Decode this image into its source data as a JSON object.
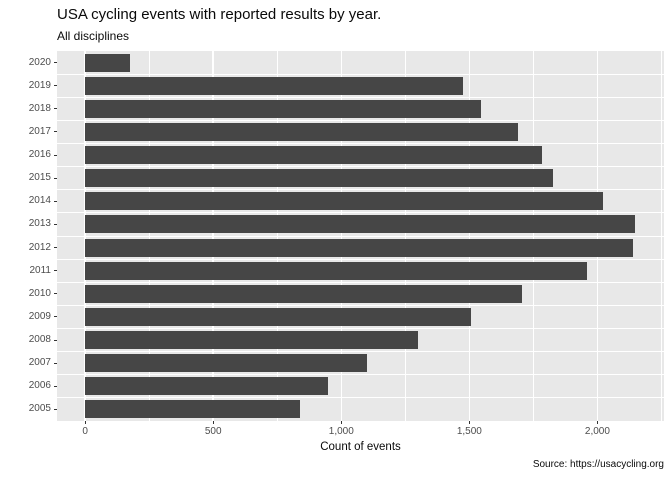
{
  "header": {
    "title": "USA cycling events with reported results by year.",
    "subtitle": "All disciplines"
  },
  "chart_data": {
    "type": "bar",
    "orientation": "horizontal",
    "title": "USA cycling events with reported results by year.",
    "subtitle": "All disciplines",
    "categories": [
      "2020",
      "2019",
      "2018",
      "2017",
      "2016",
      "2015",
      "2014",
      "2013",
      "2012",
      "2011",
      "2010",
      "2009",
      "2008",
      "2007",
      "2006",
      "2005"
    ],
    "values": [
      175,
      1475,
      1545,
      1690,
      1785,
      1825,
      2020,
      2145,
      2140,
      1960,
      1705,
      1505,
      1300,
      1100,
      950,
      840
    ],
    "xlabel": "Count of events",
    "ylabel": "",
    "x_ticks": [
      "0",
      "500",
      "1,000",
      "1,500",
      "2,000"
    ],
    "x_tick_values": [
      0,
      500,
      1000,
      1500,
      2000
    ],
    "x_minor_tick_values": [
      250,
      750,
      1250,
      1750,
      2250
    ],
    "xlim": [
      -110,
      2260
    ],
    "grid": "on",
    "legend": "none",
    "caption": "Source: https://usacycling.org",
    "colors": {
      "bar": "#464646",
      "panel_bg": "#E8E8E8",
      "grid": "#FFFFFF",
      "tick_text": "#4D4D4D",
      "text": "#0A0A0A"
    }
  }
}
